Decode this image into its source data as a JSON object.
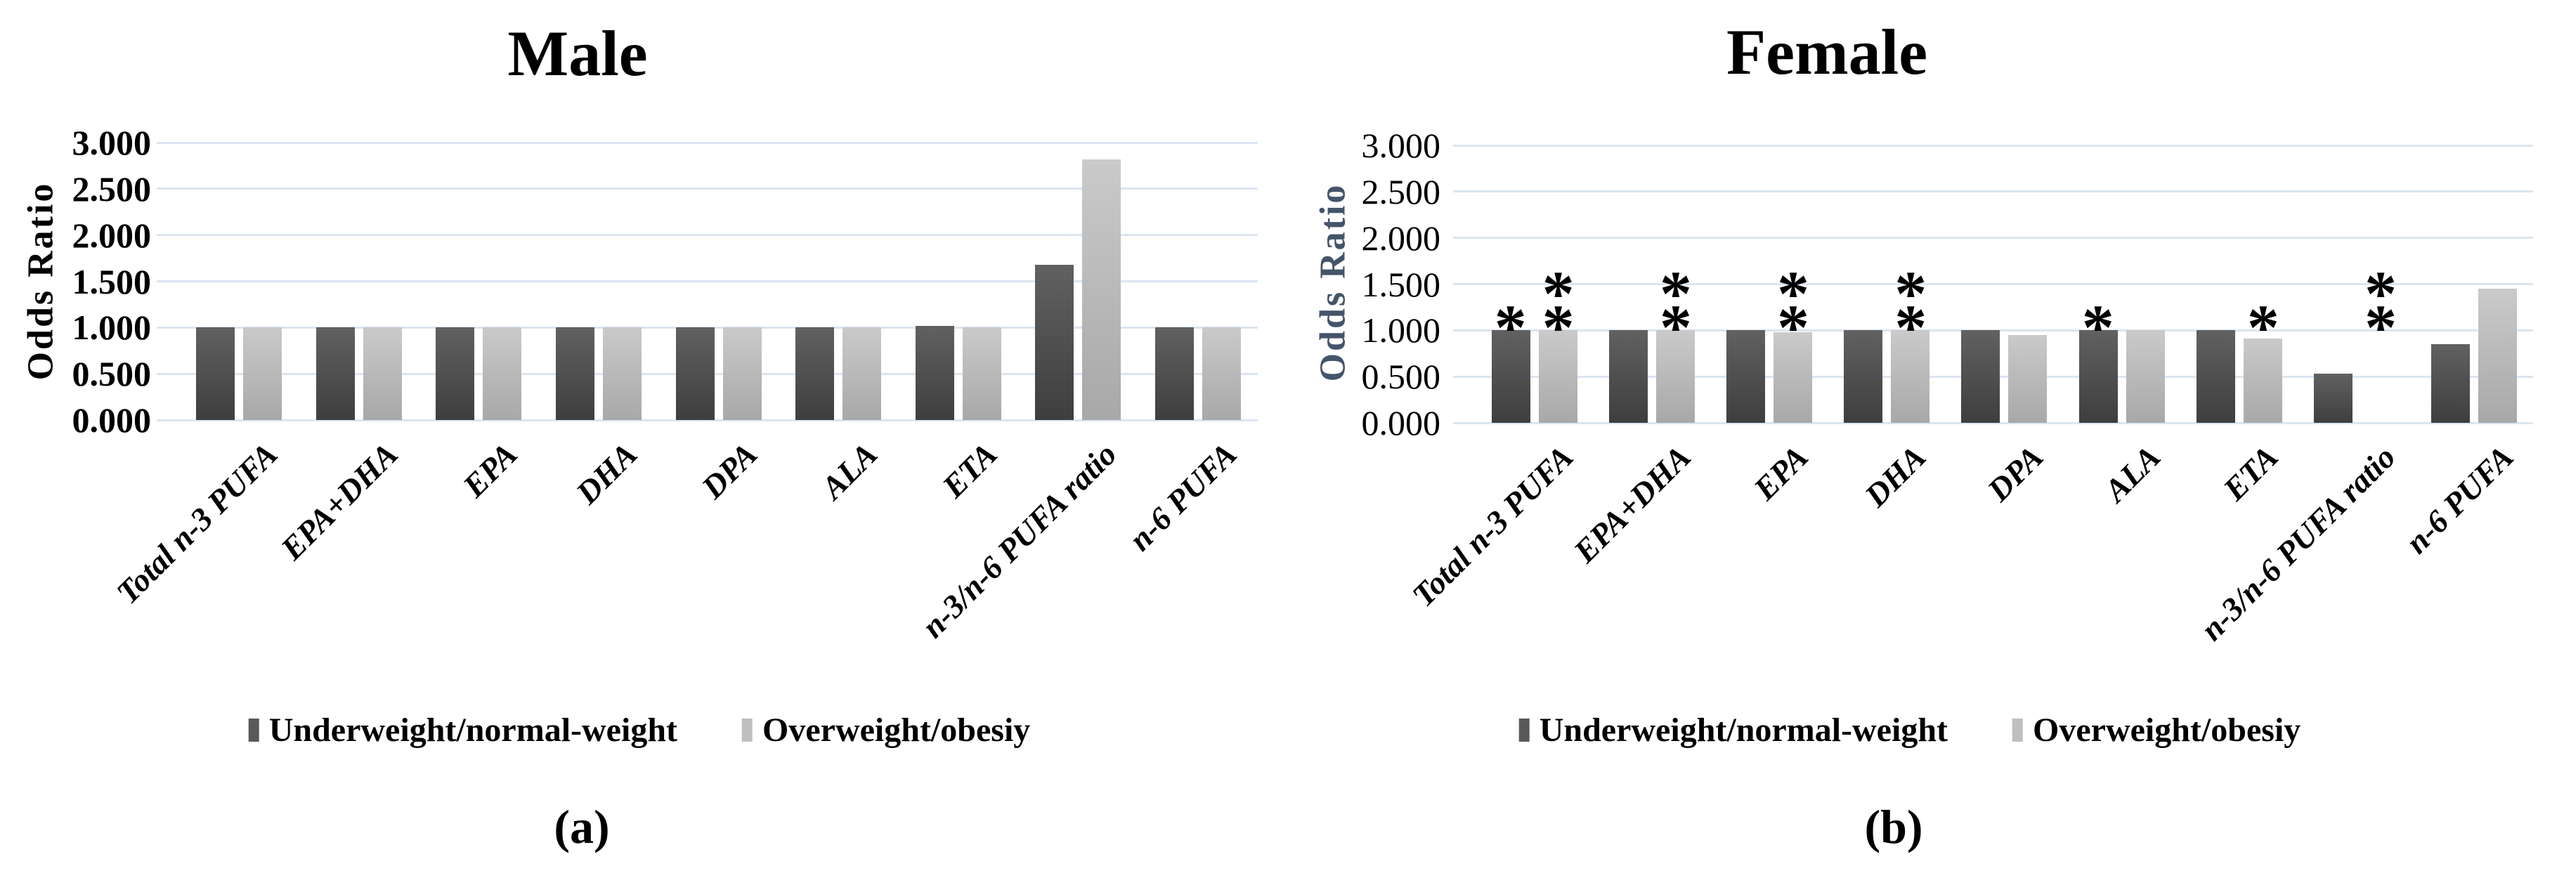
{
  "ui": {
    "captions": {
      "a": "(a)",
      "b": "(b)"
    }
  },
  "colors": {
    "bar_dark_top": "#616161",
    "bar_dark_bottom": "#3e3e3e",
    "bar_light_top": "#cacaca",
    "bar_light_bottom": "#a8a8a8",
    "legend_dark": "#595959",
    "legend_light": "#bfbfbf",
    "gridline": "#dbe5f1",
    "axis_title_left": "#000000",
    "axis_title_right": "#44546a",
    "significance": "#000000"
  },
  "chart_data": [
    {
      "type": "bar",
      "title": "Male",
      "ylabel": "Odds Ratio",
      "xlabel": "",
      "ylim": [
        0,
        3
      ],
      "ytick_step": 0.5,
      "ytick_labels": [
        "3.000",
        "2.500",
        "2.000",
        "1.500",
        "1.000",
        "0.500",
        "0.000"
      ],
      "grid": true,
      "legend_position": "bottom",
      "legend": [
        "Underweight/normal-weight",
        "Overweight/obesiy"
      ],
      "categories": [
        "Total n-3 PUFA",
        "EPA+DHA",
        "EPA",
        "DHA",
        "DPA",
        "ALA",
        "ETA",
        "n-3/n-6 PUFA ratio",
        "n-6 PUFA"
      ],
      "series": [
        {
          "name": "Underweight/normal-weight",
          "values": [
            1.0,
            1.0,
            1.0,
            1.0,
            1.0,
            1.0,
            1.02,
            1.68,
            1.0
          ],
          "significance": [
            "",
            "",
            "",
            "",
            "",
            "",
            "",
            "",
            ""
          ]
        },
        {
          "name": "Overweight/obesiy",
          "values": [
            1.0,
            1.0,
            1.0,
            1.0,
            1.0,
            1.0,
            1.0,
            2.82,
            1.0
          ],
          "significance": [
            "",
            "",
            "",
            "",
            "",
            "",
            "",
            "",
            ""
          ]
        }
      ]
    },
    {
      "type": "bar",
      "title": "Female",
      "ylabel": "Odds Ratio",
      "xlabel": "",
      "ylim": [
        0,
        3
      ],
      "ytick_step": 0.5,
      "ytick_labels": [
        "3.000",
        "2.500",
        "2.000",
        "1.500",
        "1.000",
        "0.500",
        "0.000"
      ],
      "grid": true,
      "legend_position": "bottom",
      "legend": [
        "Underweight/normal-weight",
        "Overweight/obesiy"
      ],
      "categories": [
        "Total n-3 PUFA",
        "EPA+DHA",
        "EPA",
        "DHA",
        "DPA",
        "ALA",
        "ETA",
        "n-3/n-6 PUFA ratio",
        "n-6 PUFA"
      ],
      "series": [
        {
          "name": "Underweight/normal-weight",
          "values": [
            1.0,
            1.0,
            1.0,
            1.0,
            1.0,
            1.0,
            1.0,
            0.53,
            0.85
          ],
          "significance": [
            "*",
            "",
            "",
            "",
            "",
            "*",
            "",
            "",
            ""
          ]
        },
        {
          "name": "Overweight/obesiy",
          "values": [
            1.0,
            1.0,
            0.98,
            1.0,
            0.95,
            1.0,
            0.91,
            0.0,
            1.45
          ],
          "significance": [
            "**",
            "**",
            "**",
            "**",
            "",
            "",
            "*",
            "**",
            ""
          ]
        }
      ]
    }
  ]
}
